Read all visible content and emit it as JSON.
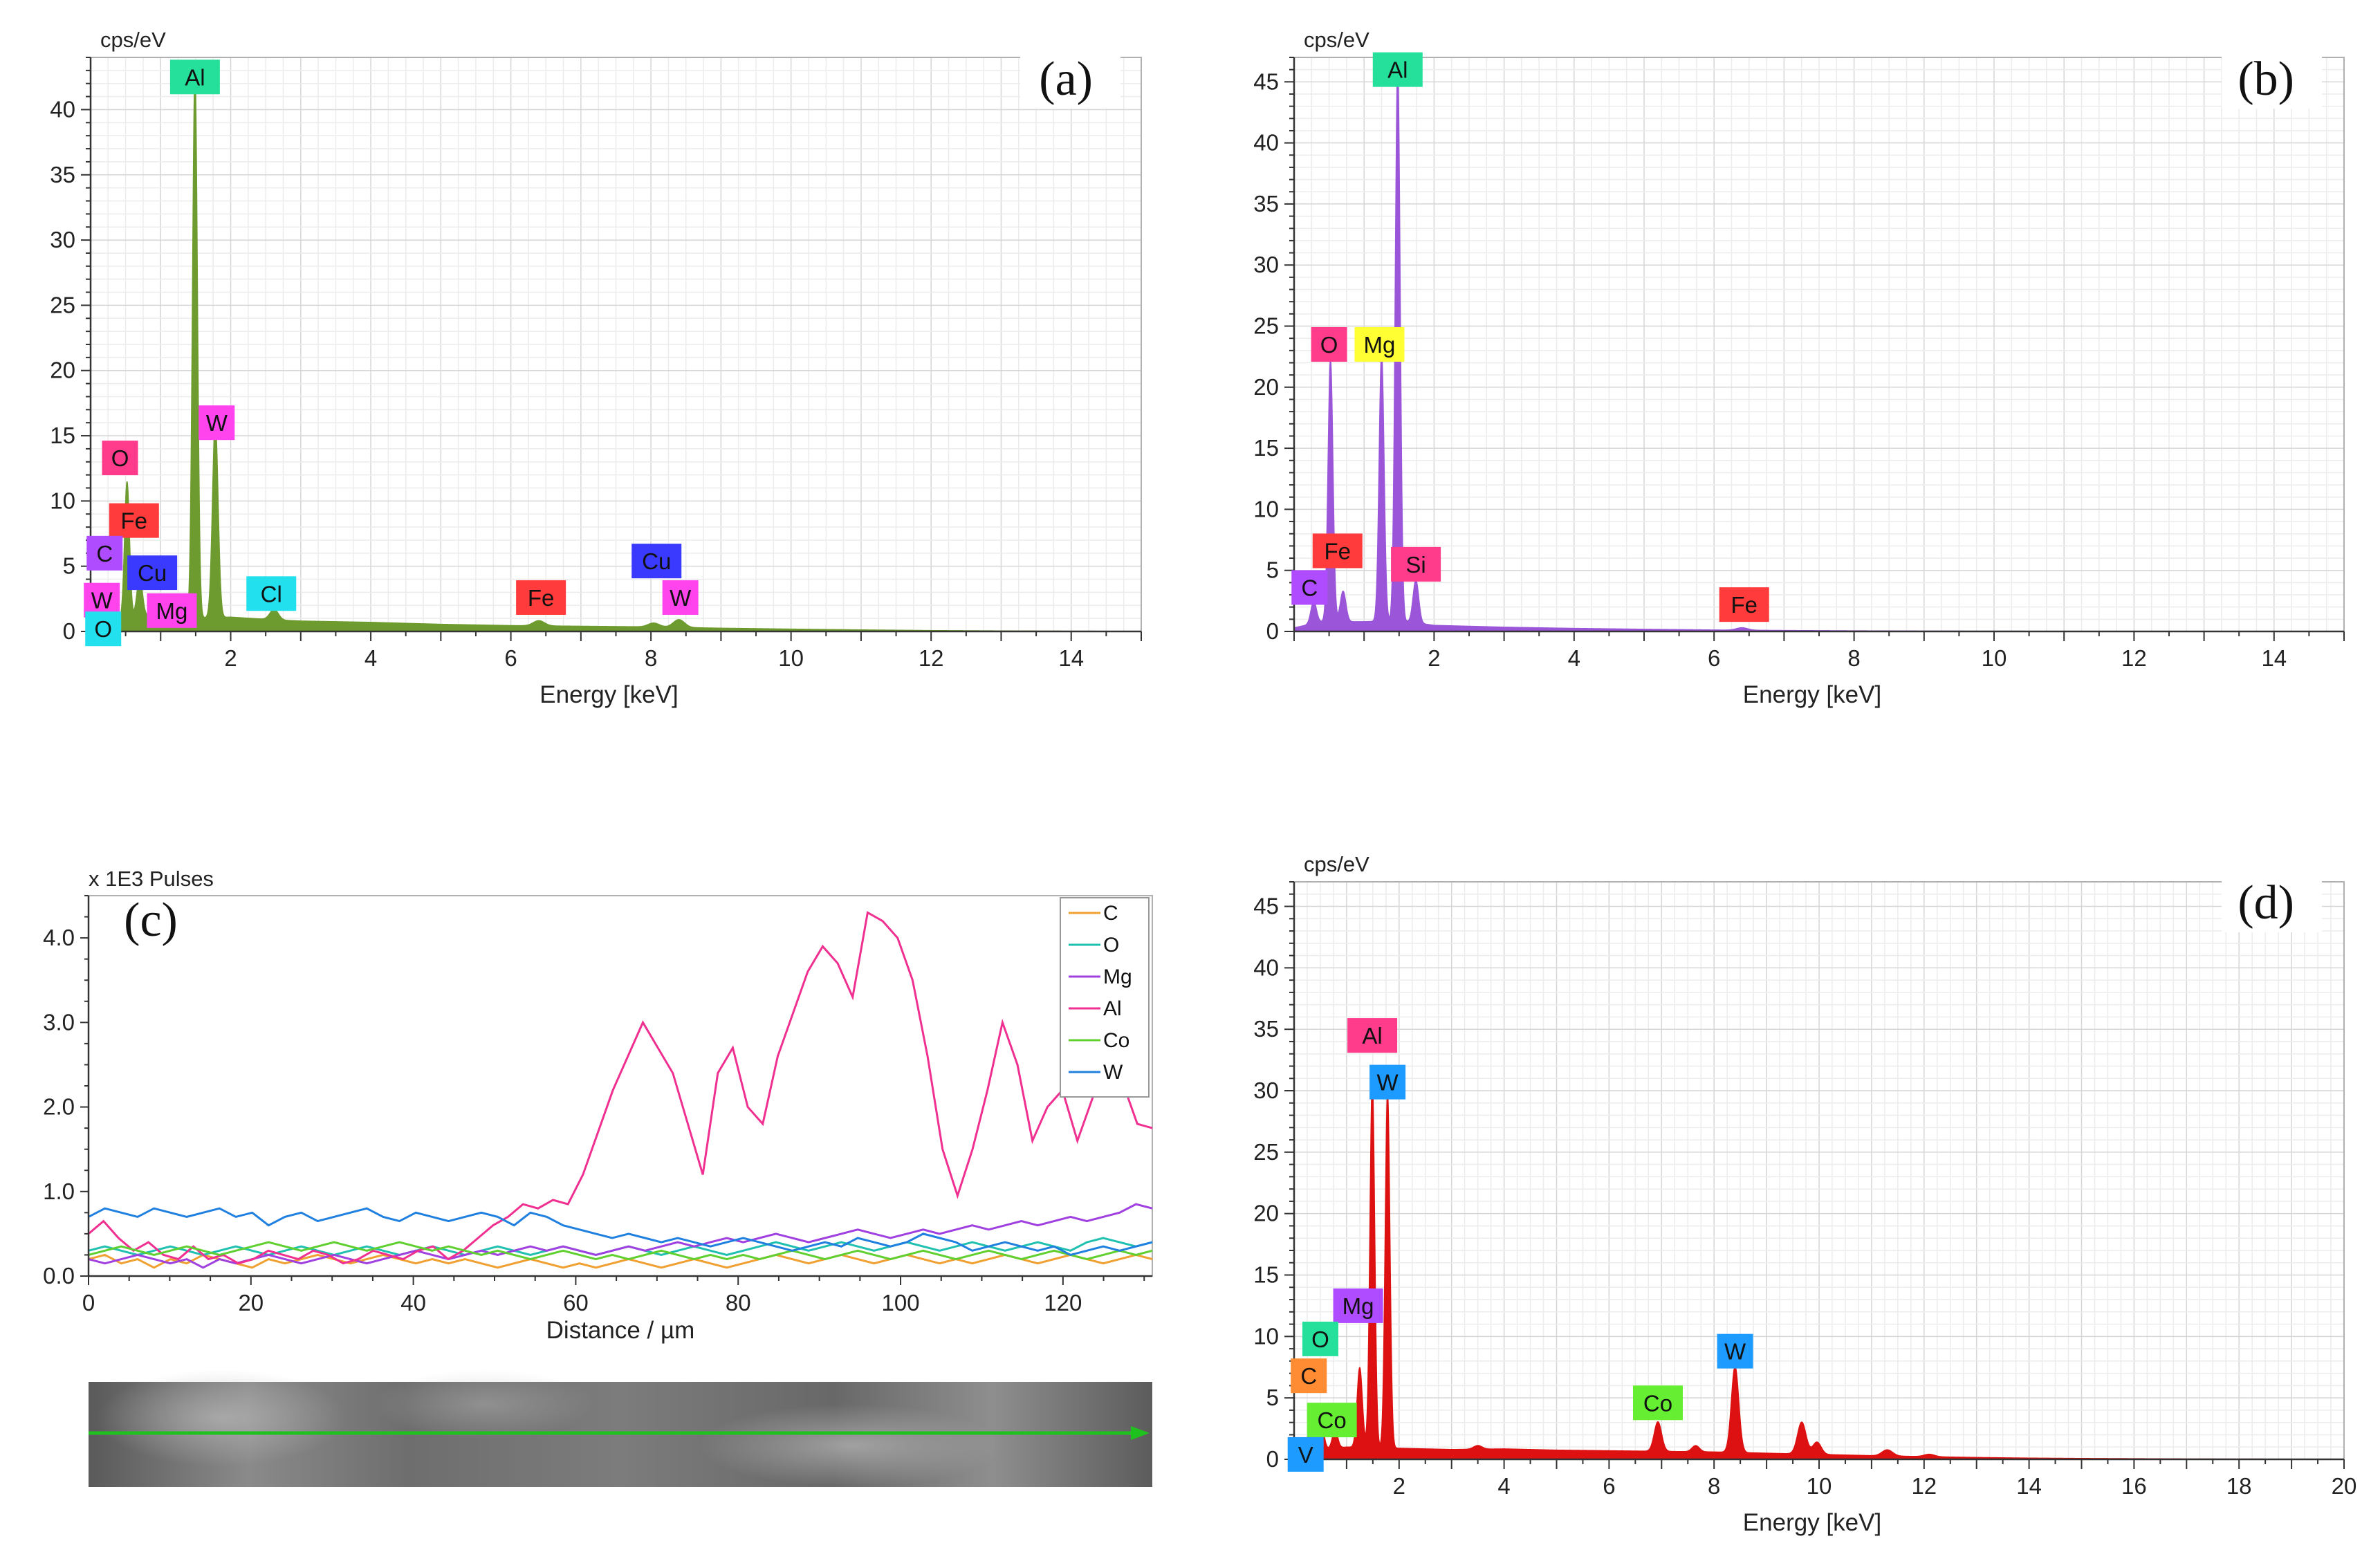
{
  "chart_data": [
    {
      "id": "a",
      "type": "area",
      "panel_label": "(a)",
      "ylabel": "cps/eV",
      "xlabel": "Energy [keV]",
      "xlim": [
        0,
        15
      ],
      "ylim": [
        0,
        44
      ],
      "xticks": [
        2,
        4,
        6,
        8,
        10,
        12,
        14
      ],
      "yticks": [
        0,
        5,
        10,
        15,
        20,
        25,
        30,
        35,
        40
      ],
      "grid": true,
      "color": "#6e9b2f",
      "baseline": [
        [
          0,
          0.3
        ],
        [
          0.4,
          0.9
        ],
        [
          0.8,
          1.2
        ],
        [
          1.3,
          1.0
        ],
        [
          2,
          1.1
        ],
        [
          2.6,
          0.9
        ],
        [
          3,
          0.8
        ],
        [
          4,
          0.7
        ],
        [
          5,
          0.55
        ],
        [
          6,
          0.45
        ],
        [
          7,
          0.4
        ],
        [
          8,
          0.35
        ],
        [
          9,
          0.25
        ],
        [
          10,
          0.18
        ],
        [
          11,
          0.12
        ],
        [
          12,
          0.07
        ],
        [
          13,
          0.04
        ],
        [
          14,
          0.02
        ],
        [
          15,
          0.01
        ]
      ],
      "peaks": [
        {
          "x": 0.28,
          "h": 2.0,
          "w": 0.04
        },
        {
          "x": 0.52,
          "h": 10.5,
          "w": 0.035
        },
        {
          "x": 0.7,
          "h": 3.0,
          "w": 0.04
        },
        {
          "x": 0.93,
          "h": 1.5,
          "w": 0.04
        },
        {
          "x": 1.25,
          "h": 1.2,
          "w": 0.04
        },
        {
          "x": 1.49,
          "h": 42.0,
          "w": 0.035
        },
        {
          "x": 1.78,
          "h": 15.0,
          "w": 0.04
        },
        {
          "x": 2.62,
          "h": 0.8,
          "w": 0.06
        },
        {
          "x": 6.4,
          "h": 0.4,
          "w": 0.08
        },
        {
          "x": 8.04,
          "h": 0.3,
          "w": 0.08
        },
        {
          "x": 8.4,
          "h": 0.6,
          "w": 0.08
        }
      ],
      "labels": [
        {
          "text": "Al",
          "x": 1.49,
          "y": 42.5,
          "color": "#25e09a"
        },
        {
          "text": "W",
          "x": 1.8,
          "y": 16.0,
          "color": "#ff44ee"
        },
        {
          "text": "O",
          "x": 0.42,
          "y": 13.3,
          "color": "#ff3c8c"
        },
        {
          "text": "Fe",
          "x": 0.62,
          "y": 8.5,
          "color": "#ff3b3b"
        },
        {
          "text": "C",
          "x": 0.2,
          "y": 6.0,
          "color": "#b04cff"
        },
        {
          "text": "Cu",
          "x": 0.88,
          "y": 4.5,
          "color": "#3a3aff"
        },
        {
          "text": "W",
          "x": 0.16,
          "y": 2.4,
          "color": "#ff44ee"
        },
        {
          "text": "Mg",
          "x": 1.16,
          "y": 1.6,
          "color": "#ff44ee"
        },
        {
          "text": "Cl",
          "x": 2.58,
          "y": 2.9,
          "color": "#22e0ee"
        },
        {
          "text": "Fe",
          "x": 6.43,
          "y": 2.6,
          "color": "#ff3b3b"
        },
        {
          "text": "Cu",
          "x": 8.08,
          "y": 5.4,
          "color": "#3a3aff"
        },
        {
          "text": "W",
          "x": 8.42,
          "y": 2.6,
          "color": "#ff44ee"
        },
        {
          "text": "O",
          "x": 0.18,
          "y": 0.2,
          "color": "#22e0ee"
        }
      ]
    },
    {
      "id": "b",
      "type": "area",
      "panel_label": "(b)",
      "ylabel": "cps/eV",
      "xlabel": "Energy [keV]",
      "xlim": [
        0,
        15
      ],
      "ylim": [
        0,
        47
      ],
      "xticks": [
        2,
        4,
        6,
        8,
        10,
        12,
        14
      ],
      "yticks": [
        0,
        5,
        10,
        15,
        20,
        25,
        30,
        35,
        40,
        45
      ],
      "grid": true,
      "color": "#9a55d8",
      "baseline": [
        [
          0,
          0.3
        ],
        [
          0.4,
          0.8
        ],
        [
          1,
          0.8
        ],
        [
          1.5,
          0.9
        ],
        [
          2,
          0.5
        ],
        [
          3,
          0.35
        ],
        [
          4,
          0.25
        ],
        [
          5,
          0.18
        ],
        [
          6,
          0.12
        ],
        [
          7,
          0.08
        ],
        [
          8,
          0.05
        ],
        [
          9,
          0.03
        ],
        [
          10,
          0.02
        ],
        [
          12,
          0.01
        ],
        [
          15,
          0.0
        ]
      ],
      "peaks": [
        {
          "x": 0.28,
          "h": 1.8,
          "w": 0.04
        },
        {
          "x": 0.52,
          "h": 21.5,
          "w": 0.035
        },
        {
          "x": 0.7,
          "h": 2.5,
          "w": 0.04
        },
        {
          "x": 1.25,
          "h": 22.0,
          "w": 0.035
        },
        {
          "x": 1.48,
          "h": 45.5,
          "w": 0.035
        },
        {
          "x": 1.74,
          "h": 3.5,
          "w": 0.04
        },
        {
          "x": 6.4,
          "h": 0.2,
          "w": 0.08
        }
      ],
      "labels": [
        {
          "text": "Al",
          "x": 1.48,
          "y": 46.0,
          "color": "#25e09a"
        },
        {
          "text": "O",
          "x": 0.5,
          "y": 23.5,
          "color": "#ff3c8c"
        },
        {
          "text": "Mg",
          "x": 1.22,
          "y": 23.5,
          "color": "#ffff33"
        },
        {
          "text": "Fe",
          "x": 0.62,
          "y": 6.6,
          "color": "#ff3b3b"
        },
        {
          "text": "Si",
          "x": 1.74,
          "y": 5.5,
          "color": "#ff3c8c"
        },
        {
          "text": "C",
          "x": 0.22,
          "y": 3.6,
          "color": "#b04cff"
        },
        {
          "text": "Fe",
          "x": 6.43,
          "y": 2.2,
          "color": "#ff3b3b"
        }
      ]
    },
    {
      "id": "c",
      "type": "line",
      "panel_label": "(c)",
      "ylabel": "x 1E3 Pulses",
      "xlabel": "Distance / µm",
      "xlim": [
        0,
        131
      ],
      "ylim": [
        0,
        4.5
      ],
      "xticks": [
        0,
        20,
        40,
        60,
        80,
        100,
        120
      ],
      "yticks": [
        0.0,
        1.0,
        2.0,
        3.0,
        4.0
      ],
      "ytick_labels": [
        "0.0",
        "1.0",
        "2.0",
        "3.0",
        "4.0"
      ],
      "legend_position": "top-right",
      "series": [
        {
          "name": "C",
          "color": "#f0a030",
          "y": [
            0.2,
            0.25,
            0.15,
            0.2,
            0.1,
            0.2,
            0.15,
            0.25,
            0.2,
            0.15,
            0.1,
            0.2,
            0.15,
            0.2,
            0.25,
            0.2,
            0.15,
            0.2,
            0.25,
            0.2,
            0.15,
            0.2,
            0.15,
            0.2,
            0.15,
            0.1,
            0.15,
            0.2,
            0.15,
            0.1,
            0.15,
            0.1,
            0.15,
            0.2,
            0.15,
            0.1,
            0.15,
            0.2,
            0.15,
            0.1,
            0.15,
            0.2,
            0.25,
            0.2,
            0.15,
            0.2,
            0.25,
            0.2,
            0.15,
            0.2,
            0.25,
            0.2,
            0.15,
            0.2,
            0.15,
            0.2,
            0.25,
            0.2,
            0.15,
            0.2,
            0.25,
            0.2,
            0.15,
            0.2,
            0.25,
            0.2
          ]
        },
        {
          "name": "O",
          "color": "#20c0b0",
          "y": [
            0.3,
            0.35,
            0.3,
            0.25,
            0.3,
            0.35,
            0.3,
            0.25,
            0.3,
            0.35,
            0.3,
            0.25,
            0.3,
            0.35,
            0.3,
            0.25,
            0.3,
            0.35,
            0.3,
            0.25,
            0.3,
            0.35,
            0.3,
            0.25,
            0.3,
            0.35,
            0.3,
            0.25,
            0.3,
            0.35,
            0.3,
            0.25,
            0.3,
            0.35,
            0.3,
            0.25,
            0.3,
            0.35,
            0.3,
            0.25,
            0.3,
            0.35,
            0.4,
            0.35,
            0.3,
            0.35,
            0.4,
            0.35,
            0.3,
            0.35,
            0.4,
            0.35,
            0.3,
            0.35,
            0.4,
            0.35,
            0.3,
            0.35,
            0.4,
            0.35,
            0.3,
            0.4,
            0.45,
            0.4,
            0.35,
            0.4
          ]
        },
        {
          "name": "Mg",
          "color": "#a040e0",
          "y": [
            0.2,
            0.15,
            0.2,
            0.25,
            0.2,
            0.15,
            0.2,
            0.1,
            0.2,
            0.15,
            0.2,
            0.25,
            0.2,
            0.15,
            0.2,
            0.25,
            0.2,
            0.15,
            0.2,
            0.25,
            0.3,
            0.25,
            0.2,
            0.25,
            0.3,
            0.25,
            0.3,
            0.35,
            0.3,
            0.35,
            0.3,
            0.25,
            0.3,
            0.35,
            0.3,
            0.35,
            0.4,
            0.35,
            0.4,
            0.45,
            0.4,
            0.45,
            0.5,
            0.45,
            0.4,
            0.45,
            0.5,
            0.55,
            0.5,
            0.45,
            0.5,
            0.55,
            0.5,
            0.55,
            0.6,
            0.55,
            0.6,
            0.65,
            0.6,
            0.65,
            0.7,
            0.65,
            0.7,
            0.75,
            0.85,
            0.8
          ]
        },
        {
          "name": "Al",
          "color": "#f03090",
          "y": [
            0.5,
            0.65,
            0.45,
            0.3,
            0.4,
            0.25,
            0.2,
            0.35,
            0.2,
            0.25,
            0.15,
            0.2,
            0.3,
            0.25,
            0.2,
            0.3,
            0.25,
            0.15,
            0.2,
            0.3,
            0.25,
            0.2,
            0.3,
            0.35,
            0.2,
            0.3,
            0.45,
            0.6,
            0.7,
            0.85,
            0.8,
            0.9,
            0.85,
            1.2,
            1.7,
            2.2,
            2.6,
            3.0,
            2.7,
            2.4,
            1.8,
            1.2,
            2.4,
            2.7,
            2.0,
            1.8,
            2.6,
            3.1,
            3.6,
            3.9,
            3.7,
            3.3,
            4.3,
            4.2,
            4.0,
            3.5,
            2.6,
            1.5,
            0.95,
            1.5,
            2.2,
            3.0,
            2.5,
            1.6,
            2.0,
            2.2,
            1.6,
            2.1,
            2.6,
            2.3,
            1.8,
            1.75
          ]
        },
        {
          "name": "Co",
          "color": "#60d030",
          "y": [
            0.25,
            0.3,
            0.35,
            0.3,
            0.25,
            0.3,
            0.35,
            0.3,
            0.25,
            0.3,
            0.35,
            0.4,
            0.35,
            0.3,
            0.35,
            0.4,
            0.35,
            0.3,
            0.35,
            0.4,
            0.35,
            0.3,
            0.35,
            0.3,
            0.25,
            0.3,
            0.25,
            0.2,
            0.25,
            0.3,
            0.25,
            0.2,
            0.25,
            0.2,
            0.25,
            0.3,
            0.25,
            0.2,
            0.25,
            0.2,
            0.25,
            0.2,
            0.25,
            0.3,
            0.25,
            0.2,
            0.25,
            0.3,
            0.25,
            0.2,
            0.25,
            0.3,
            0.25,
            0.2,
            0.25,
            0.3,
            0.25,
            0.2,
            0.25,
            0.3,
            0.25,
            0.2,
            0.25,
            0.3,
            0.25,
            0.3
          ]
        },
        {
          "name": "W",
          "color": "#2080e0",
          "y": [
            0.7,
            0.8,
            0.75,
            0.7,
            0.8,
            0.75,
            0.7,
            0.75,
            0.8,
            0.7,
            0.75,
            0.6,
            0.7,
            0.75,
            0.65,
            0.7,
            0.75,
            0.8,
            0.7,
            0.65,
            0.75,
            0.7,
            0.65,
            0.7,
            0.75,
            0.7,
            0.6,
            0.75,
            0.7,
            0.6,
            0.55,
            0.5,
            0.45,
            0.5,
            0.45,
            0.4,
            0.45,
            0.4,
            0.35,
            0.4,
            0.45,
            0.4,
            0.35,
            0.3,
            0.35,
            0.4,
            0.35,
            0.45,
            0.4,
            0.35,
            0.4,
            0.5,
            0.45,
            0.4,
            0.3,
            0.35,
            0.4,
            0.35,
            0.3,
            0.35,
            0.25,
            0.3,
            0.35,
            0.3,
            0.35,
            0.4
          ]
        }
      ]
    },
    {
      "id": "d",
      "type": "area",
      "panel_label": "(d)",
      "ylabel": "cps/eV",
      "xlabel": "Energy [keV]",
      "xlim": [
        0,
        20
      ],
      "ylim": [
        0,
        47
      ],
      "xticks": [
        2,
        4,
        6,
        8,
        10,
        12,
        14,
        16,
        18,
        20
      ],
      "yticks": [
        0,
        5,
        10,
        15,
        20,
        25,
        30,
        35,
        40,
        45
      ],
      "grid": true,
      "color": "#dd1111",
      "baseline": [
        [
          0,
          0.2
        ],
        [
          0.5,
          0.8
        ],
        [
          1,
          1.0
        ],
        [
          2,
          0.9
        ],
        [
          3,
          0.8
        ],
        [
          4,
          0.85
        ],
        [
          5,
          0.75
        ],
        [
          6,
          0.7
        ],
        [
          7,
          0.65
        ],
        [
          8,
          0.6
        ],
        [
          9,
          0.5
        ],
        [
          10,
          0.4
        ],
        [
          11,
          0.3
        ],
        [
          12,
          0.22
        ],
        [
          13,
          0.15
        ],
        [
          14,
          0.1
        ],
        [
          15,
          0.07
        ],
        [
          16,
          0.05
        ],
        [
          17,
          0.03
        ],
        [
          18,
          0.02
        ],
        [
          20,
          0.01
        ]
      ],
      "peaks": [
        {
          "x": 0.28,
          "h": 1.5,
          "w": 0.05
        },
        {
          "x": 0.52,
          "h": 2.0,
          "w": 0.05
        },
        {
          "x": 0.78,
          "h": 1.5,
          "w": 0.05
        },
        {
          "x": 1.25,
          "h": 6.5,
          "w": 0.05
        },
        {
          "x": 1.49,
          "h": 30.0,
          "w": 0.045
        },
        {
          "x": 1.78,
          "h": 29.0,
          "w": 0.045
        },
        {
          "x": 3.5,
          "h": 0.3,
          "w": 0.08
        },
        {
          "x": 6.93,
          "h": 2.4,
          "w": 0.07
        },
        {
          "x": 7.65,
          "h": 0.5,
          "w": 0.07
        },
        {
          "x": 8.4,
          "h": 7.0,
          "w": 0.07
        },
        {
          "x": 9.67,
          "h": 2.6,
          "w": 0.08
        },
        {
          "x": 9.96,
          "h": 1.0,
          "w": 0.08
        },
        {
          "x": 11.3,
          "h": 0.5,
          "w": 0.1
        },
        {
          "x": 12.1,
          "h": 0.2,
          "w": 0.1
        }
      ],
      "labels": [
        {
          "text": "Al",
          "x": 1.49,
          "y": 34.5,
          "color": "#ff3c8c"
        },
        {
          "text": "W",
          "x": 1.78,
          "y": 30.7,
          "color": "#1e9bff"
        },
        {
          "text": "Mg",
          "x": 1.22,
          "y": 12.5,
          "color": "#b04cff"
        },
        {
          "text": "O",
          "x": 0.5,
          "y": 9.8,
          "color": "#25e09a"
        },
        {
          "text": "C",
          "x": 0.28,
          "y": 6.8,
          "color": "#ff8c33"
        },
        {
          "text": "Co",
          "x": 0.72,
          "y": 3.2,
          "color": "#66ee33"
        },
        {
          "text": "V",
          "x": 0.22,
          "y": 0.4,
          "color": "#1e9bff"
        },
        {
          "text": "Co",
          "x": 6.93,
          "y": 4.6,
          "color": "#66ee33"
        },
        {
          "text": "W",
          "x": 8.4,
          "y": 8.8,
          "color": "#1e9bff"
        }
      ]
    }
  ]
}
